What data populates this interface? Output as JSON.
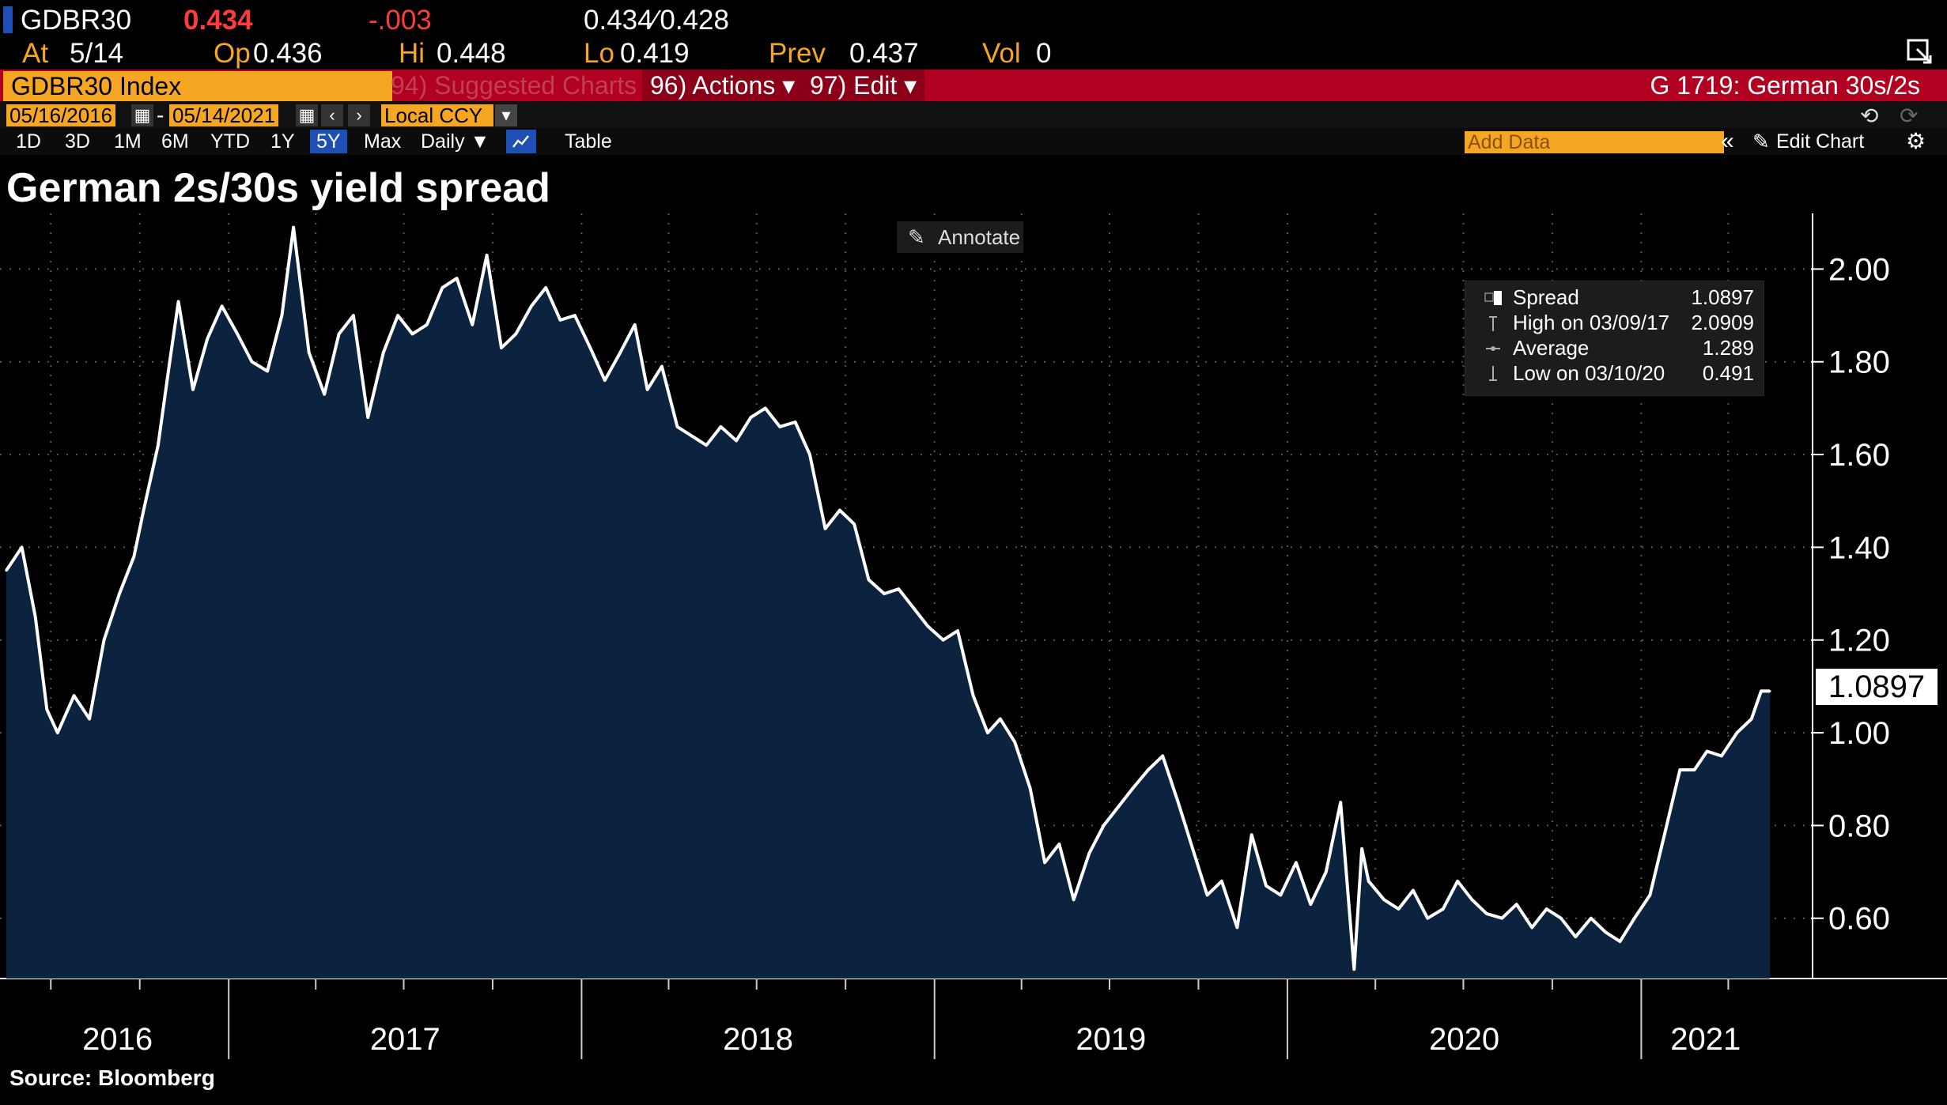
{
  "quote": {
    "ticker": "GDBR30",
    "last": "0.434",
    "change": "-.003",
    "bid_ask": "0.434∕ 0.428",
    "at_label": "At",
    "at_date": "5/14",
    "open_label": "Op",
    "open": "0.436",
    "high_label": "Hi",
    "high": "0.448",
    "low_label": "Lo",
    "low": "0.419",
    "prev_label": "Prev",
    "prev": "0.437",
    "vol_label": "Vol",
    "vol": "0"
  },
  "toolbar": {
    "security": "GDBR30 Index",
    "suggested": "94) Suggested Charts",
    "actions": "96) Actions ▾",
    "edit": "97) Edit ▾",
    "chart_id": "G 1719: German 30s/2s",
    "start_date": "05/16/2016",
    "dash": "-",
    "end_date": "05/14/2021",
    "currency": "Local CCY",
    "ranges": [
      "1D",
      "3D",
      "1M",
      "6M",
      "YTD",
      "1Y",
      "5Y",
      "Max"
    ],
    "active_range": "5Y",
    "frequency": "Daily ▼",
    "table": "Table",
    "add_data_placeholder": "Add Data",
    "edit_chart": "Edit Chart"
  },
  "annotate": "Annotate",
  "last_value_tag": "1.0897",
  "legend": {
    "series": "Spread",
    "series_value": "1.0897",
    "high_label": "High on 03/09/17",
    "high_value": "2.0909",
    "avg_label": "Average",
    "avg_value": "1.289",
    "low_label": "Low on 03/10/20",
    "low_value": "0.491"
  },
  "source": "Source: Bloomberg",
  "colors": {
    "background": "#000000",
    "area_fill": "#0c2340",
    "line": "#ffffff",
    "amber": "#f5a623",
    "red_bar": "#b20021",
    "negative": "#ff3b3b"
  },
  "chart_data": {
    "type": "area",
    "title": "German 2s/30s yield spread",
    "series_name": "Spread",
    "ylim": [
      0.47,
      2.12
    ],
    "yticks": [
      0.6,
      0.8,
      1.0,
      1.2,
      1.4,
      1.6,
      1.8,
      2.0
    ],
    "ytick_labels": [
      "0.60",
      "0.80",
      "1.00",
      "1.20",
      "1.40",
      "1.60",
      "1.80",
      "2.00"
    ],
    "x_start": "2016-05-16",
    "x_end": "2021-05-14",
    "year_labels": [
      "2016",
      "2017",
      "2018",
      "2019",
      "2020",
      "2021"
    ],
    "grid": true,
    "x": [
      "2016-05-16",
      "2016-06-01",
      "2016-06-15",
      "2016-06-27",
      "2016-07-08",
      "2016-07-25",
      "2016-08-10",
      "2016-08-25",
      "2016-09-10",
      "2016-09-25",
      "2016-10-05",
      "2016-10-20",
      "2016-11-01",
      "2016-11-10",
      "2016-11-25",
      "2016-12-10",
      "2016-12-25",
      "2017-01-10",
      "2017-01-25",
      "2017-02-10",
      "2017-02-25",
      "2017-03-09",
      "2017-03-25",
      "2017-04-10",
      "2017-04-25",
      "2017-05-10",
      "2017-05-25",
      "2017-06-10",
      "2017-06-25",
      "2017-07-10",
      "2017-07-25",
      "2017-08-10",
      "2017-08-25",
      "2017-09-10",
      "2017-09-25",
      "2017-10-10",
      "2017-10-25",
      "2017-11-10",
      "2017-11-25",
      "2017-12-10",
      "2017-12-25",
      "2018-01-10",
      "2018-01-25",
      "2018-02-10",
      "2018-02-25",
      "2018-03-10",
      "2018-03-25",
      "2018-04-10",
      "2018-04-25",
      "2018-05-10",
      "2018-05-25",
      "2018-06-10",
      "2018-06-25",
      "2018-07-10",
      "2018-07-25",
      "2018-08-10",
      "2018-08-25",
      "2018-09-10",
      "2018-09-25",
      "2018-10-10",
      "2018-10-25",
      "2018-11-10",
      "2018-11-25",
      "2018-12-10",
      "2018-12-25",
      "2019-01-10",
      "2019-01-25",
      "2019-02-10",
      "2019-02-25",
      "2019-03-10",
      "2019-03-25",
      "2019-04-10",
      "2019-04-25",
      "2019-05-10",
      "2019-05-25",
      "2019-06-10",
      "2019-06-25",
      "2019-07-10",
      "2019-07-25",
      "2019-08-10",
      "2019-08-25",
      "2019-09-10",
      "2019-09-25",
      "2019-10-10",
      "2019-10-25",
      "2019-11-10",
      "2019-11-25",
      "2019-12-10",
      "2019-12-25",
      "2020-01-10",
      "2020-01-25",
      "2020-02-10",
      "2020-02-25",
      "2020-03-10",
      "2020-03-18",
      "2020-03-25",
      "2020-04-10",
      "2020-04-25",
      "2020-05-10",
      "2020-05-25",
      "2020-06-10",
      "2020-06-25",
      "2020-07-10",
      "2020-07-25",
      "2020-08-10",
      "2020-08-25",
      "2020-09-10",
      "2020-09-25",
      "2020-10-10",
      "2020-10-25",
      "2020-11-10",
      "2020-11-25",
      "2020-12-10",
      "2020-12-25",
      "2021-01-10",
      "2021-01-25",
      "2021-02-10",
      "2021-02-25",
      "2021-03-10",
      "2021-03-25",
      "2021-04-10",
      "2021-04-25",
      "2021-05-05",
      "2021-05-14"
    ],
    "values": [
      1.35,
      1.4,
      1.25,
      1.05,
      1.0,
      1.08,
      1.03,
      1.2,
      1.3,
      1.38,
      1.48,
      1.62,
      1.8,
      1.93,
      1.74,
      1.85,
      1.92,
      1.86,
      1.8,
      1.78,
      1.9,
      2.09,
      1.82,
      1.73,
      1.86,
      1.9,
      1.68,
      1.82,
      1.9,
      1.86,
      1.88,
      1.96,
      1.98,
      1.88,
      2.03,
      1.83,
      1.86,
      1.92,
      1.96,
      1.89,
      1.9,
      1.83,
      1.76,
      1.82,
      1.88,
      1.74,
      1.79,
      1.66,
      1.64,
      1.62,
      1.66,
      1.63,
      1.68,
      1.7,
      1.66,
      1.67,
      1.6,
      1.44,
      1.48,
      1.45,
      1.33,
      1.3,
      1.31,
      1.27,
      1.23,
      1.2,
      1.22,
      1.08,
      1.0,
      1.03,
      0.98,
      0.88,
      0.72,
      0.76,
      0.64,
      0.74,
      0.8,
      0.84,
      0.88,
      0.92,
      0.95,
      0.85,
      0.75,
      0.65,
      0.68,
      0.58,
      0.78,
      0.67,
      0.65,
      0.72,
      0.63,
      0.7,
      0.85,
      0.49,
      0.75,
      0.68,
      0.64,
      0.62,
      0.66,
      0.6,
      0.62,
      0.68,
      0.64,
      0.61,
      0.6,
      0.63,
      0.58,
      0.62,
      0.6,
      0.56,
      0.6,
      0.57,
      0.55,
      0.6,
      0.65,
      0.78,
      0.92,
      0.92,
      0.96,
      0.95,
      1.0,
      1.03,
      1.09,
      1.0897
    ]
  }
}
